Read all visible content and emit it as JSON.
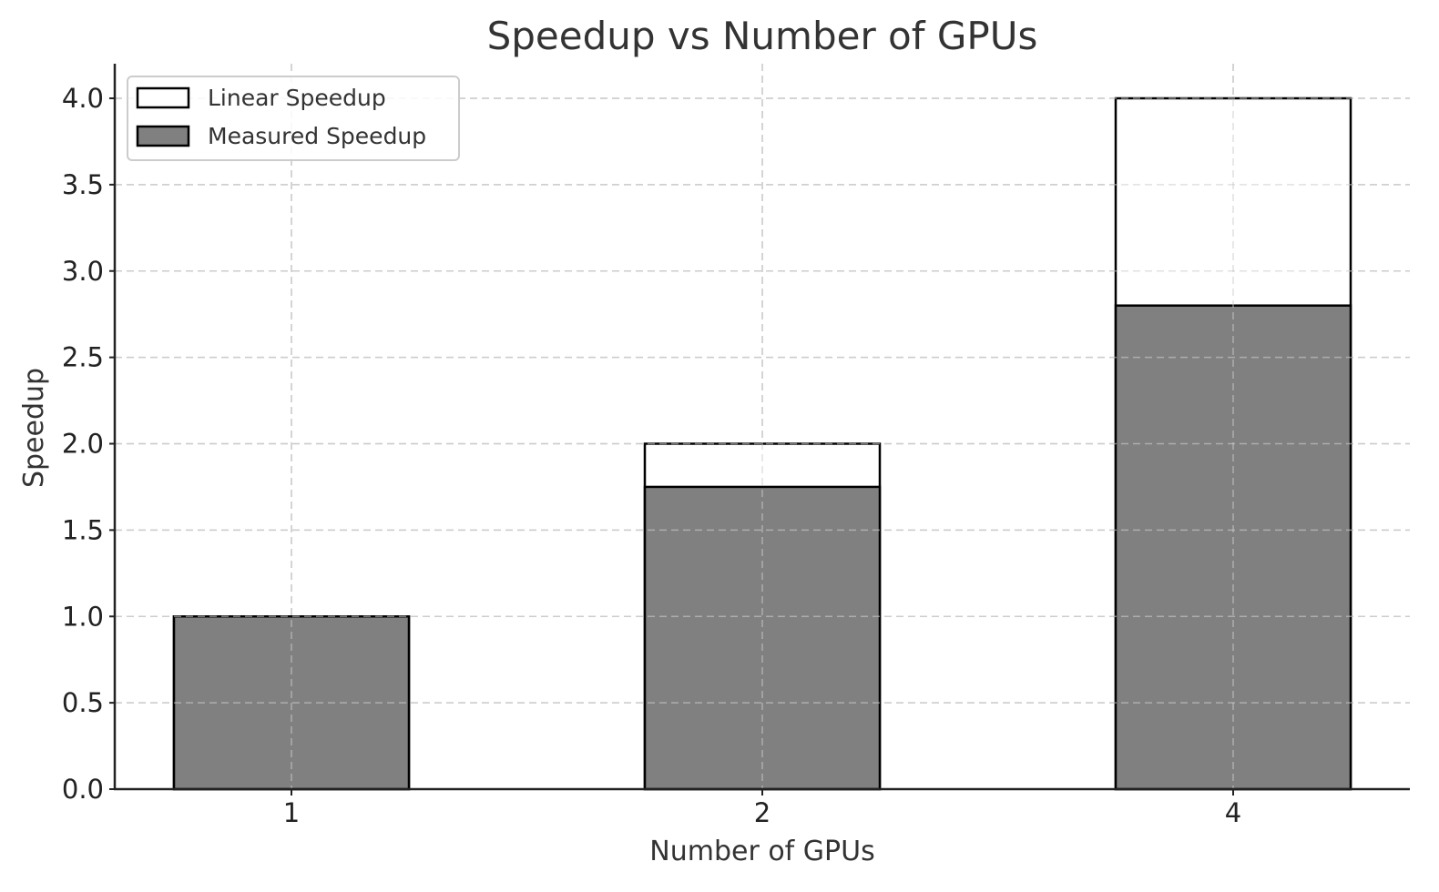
{
  "chart_data": {
    "type": "bar",
    "title": "Speedup vs Number of GPUs",
    "xlabel": "Number of GPUs",
    "ylabel": "Speedup",
    "categories": [
      "1",
      "2",
      "4"
    ],
    "series": [
      {
        "name": "Linear Speedup",
        "values": [
          1,
          2,
          4
        ],
        "color": "#ffffff",
        "edgecolor": "#000000"
      },
      {
        "name": "Measured Speedup",
        "values": [
          1.0,
          1.75,
          2.8
        ],
        "color": "#808080",
        "edgecolor": "#000000"
      }
    ],
    "ylim": [
      0,
      4.2
    ],
    "yticks": [
      "0.0",
      "0.5",
      "1.0",
      "1.5",
      "2.0",
      "2.5",
      "3.0",
      "3.5",
      "4.0"
    ],
    "grid": true,
    "legend_position": "upper left"
  },
  "colors": {
    "text": "#333333",
    "grid": "#cccccc",
    "axis": "#222222"
  }
}
